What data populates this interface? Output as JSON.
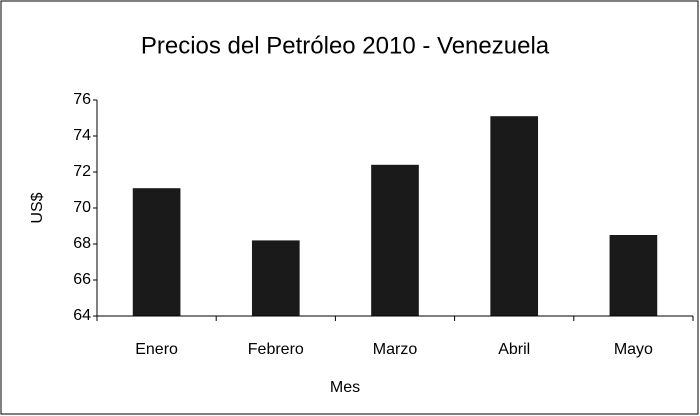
{
  "chart_data": {
    "type": "bar",
    "title": "Precios del Petróleo 2010 - Venezuela",
    "x_label": "Mes",
    "y_label": "US$",
    "categories": [
      "Enero",
      "Febrero",
      "Marzo",
      "Abril",
      "Mayo"
    ],
    "values": [
      71.1,
      68.2,
      72.4,
      75.1,
      68.5
    ],
    "color": "#1a1a1a",
    "ylim": [
      64,
      76
    ],
    "yticks": [
      64,
      66,
      68,
      70,
      72,
      74,
      76
    ],
    "grid": false
  }
}
